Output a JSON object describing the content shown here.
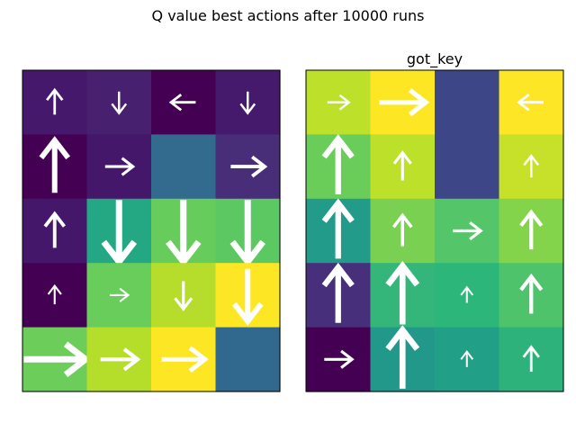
{
  "figure": {
    "suptitle": "Q value best actions after 10000 runs"
  },
  "chart_data": [
    {
      "type": "heatmap",
      "title": "",
      "rows": 5,
      "cols": 4,
      "colormap": "viridis",
      "colors": [
        [
          "#45186b",
          "#47206f",
          "#440154",
          "#451a6c"
        ],
        [
          "#440154",
          "#45176a",
          "#336b8e",
          "#482d79"
        ],
        [
          "#45176b",
          "#23a883",
          "#66cc5c",
          "#5cc862"
        ],
        [
          "#440154",
          "#68cd5b",
          "#b6dd2b",
          "#fde725"
        ],
        [
          "#6ccd5a",
          "#b5de2b",
          "#fde725",
          "#31688e"
        ]
      ],
      "arrows": [
        [
          "up",
          "down",
          "left",
          "down"
        ],
        [
          "up",
          "right",
          "none",
          "right"
        ],
        [
          "up",
          "down",
          "down",
          "down"
        ],
        [
          "up",
          "right",
          "down",
          "down"
        ],
        [
          "right",
          "right",
          "right",
          "none"
        ]
      ],
      "arrow_size": [
        [
          0.4,
          0.35,
          0.4,
          0.35
        ],
        [
          0.85,
          0.45,
          0,
          0.55
        ],
        [
          0.55,
          1.0,
          1.0,
          1.0
        ],
        [
          0.3,
          0.3,
          0.45,
          0.85
        ],
        [
          1.0,
          0.6,
          0.7,
          0
        ]
      ]
    },
    {
      "type": "heatmap",
      "title": "got_key",
      "rows": 5,
      "cols": 4,
      "colormap": "viridis",
      "colors": [
        [
          "#bde02a",
          "#fde725",
          "#3d4787",
          "#fce626"
        ],
        [
          "#6acd5a",
          "#bde02a",
          "#3d4787",
          "#c7e12a"
        ],
        [
          "#229b8b",
          "#79d051",
          "#54c568",
          "#84d44b"
        ],
        [
          "#472f7c",
          "#34b579",
          "#2db67a",
          "#4fc36b"
        ],
        [
          "#440154",
          "#22988b",
          "#21a087",
          "#2eb27b"
        ]
      ],
      "arrows": [
        [
          "right",
          "right",
          "none",
          "left"
        ],
        [
          "up",
          "up",
          "none",
          "up"
        ],
        [
          "up",
          "up",
          "right",
          "up"
        ],
        [
          "up",
          "up",
          "up",
          "up"
        ],
        [
          "right",
          "up",
          "up",
          "up"
        ]
      ],
      "arrow_size": [
        [
          0.35,
          0.75,
          0,
          0.4
        ],
        [
          0.9,
          0.45,
          0,
          0.35
        ],
        [
          0.9,
          0.5,
          0.45,
          0.6
        ],
        [
          0.9,
          0.95,
          0.25,
          0.6
        ],
        [
          0.45,
          0.95,
          0.25,
          0.4
        ]
      ]
    }
  ]
}
